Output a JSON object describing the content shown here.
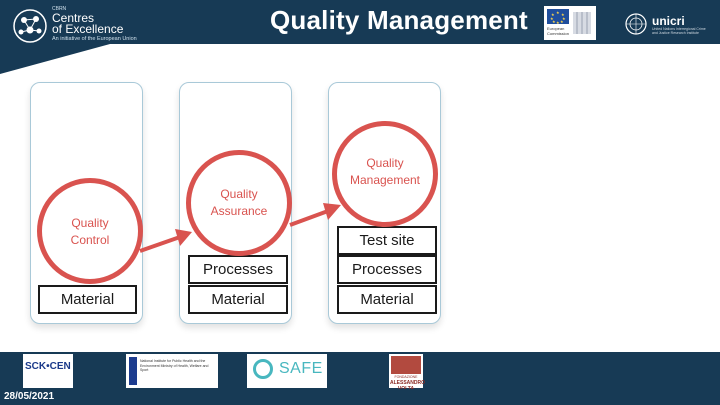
{
  "header": {
    "title": "Quality Management",
    "coe_logo": {
      "small": "CBRN",
      "line1": "Centres",
      "line2": "of Excellence",
      "line3": "An initiative of the European Union"
    },
    "eu_logo": {
      "text_line1": "European",
      "text_line2": "Commission"
    },
    "unicri_logo": {
      "name": "unicri",
      "subtitle": "United Nations Interregional Crime and Justice Research Institute"
    }
  },
  "diagram": {
    "columns": [
      {
        "circle_label_1": "Quality",
        "circle_label_2": "Control",
        "boxes": [
          "Material"
        ]
      },
      {
        "circle_label_1": "Quality",
        "circle_label_2": "Assurance",
        "boxes": [
          "Processes",
          "Material"
        ]
      },
      {
        "circle_label_1": "Quality",
        "circle_label_2": "Management",
        "boxes": [
          "Test site",
          "Processes",
          "Material"
        ]
      }
    ]
  },
  "footer": {
    "date": "28/05/2021",
    "partners": {
      "sck": {
        "name": "SCK•CEN"
      },
      "rivm": {
        "text": "National Institute for Public Health and the Environment Ministry of Health, Welfare and Sport"
      },
      "safe": {
        "name": "SAFE"
      },
      "volta": {
        "line1": "FONDAZIONE",
        "line2": "ALESSANDRO VOLTA"
      }
    }
  },
  "colors": {
    "header": "#173a55",
    "accent_red": "#d9534f",
    "column_border": "#a9c9d8"
  }
}
